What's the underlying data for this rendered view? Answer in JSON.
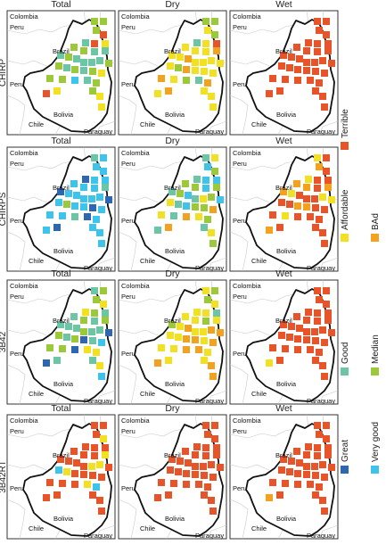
{
  "columns": [
    "Total",
    "Dry",
    "Wet"
  ],
  "rows": [
    "CHIRP",
    "CHIRPS",
    "3B42",
    "3B42RT"
  ],
  "country_labels": [
    "Colombia",
    "Peru",
    "Brazil",
    "Peru",
    "Bolivia",
    "Chile",
    "Paraguay"
  ],
  "legend": [
    {
      "label": "Terrible",
      "color": "#e8542a"
    },
    {
      "label": "Affordable",
      "color": "#f2e022"
    },
    {
      "label": "BAd",
      "color": "#f2a21f"
    },
    {
      "label": "Good",
      "color": "#6cc5a5"
    },
    {
      "label": "Median",
      "color": "#9cc93a"
    },
    {
      "label": "Great",
      "color": "#2f66b0"
    },
    {
      "label": "Very good",
      "color": "#3ec3ea"
    }
  ],
  "color_codes": {
    "T": "#e8542a",
    "A": "#f2e022",
    "B": "#f2a21f",
    "G": "#6cc5a5",
    "M": "#9cc93a",
    "R": "#2f66b0",
    "V": "#3ec3ea"
  },
  "panels": {
    "CHIRP": {
      "Total": "MMMTGTAMMGGGMGGGGMMGMGMAMMVGMMAAAT",
      "Dry": "MMAMGATAAABAABAAAAAMBAAABAMGBABAAA",
      "Wet": "TTTTTTTTTTTTTTTTTTTTTTTTTTTTTTTTTT"
    },
    "CHIRPS": {
      "Total": "GVVVRVVVVVGRVVVVVRVMVVRVVVGRVVRVVV",
      "Dry": "GAVMGVVMMVMGMVGAMVAGVMMBAGBAMGBAMG",
      "Wet": "ATBTATTBBTBBATTTAATTBBTTTATTTTTTTB"
    },
    "3B42": {
      "Total": "GMMAAMGGMGMGGGMGGRMGMRGVMMRAAGGAVR",
      "Dry": "AMMAAAGAAMAMABAABBAABBABAABBAAABBB",
      "Wet": "TTTTTTTTTTTTTTTTTTTTTTTTTTTTTTTTTA"
    },
    "3B42RT": {
      "Total": "TTTATTTTTTATTTTAATVATTTTTTTAVTTTTT",
      "Dry": "TTTTTTTTTTTTTTTTTTTTTTTTTTTTTTTTTT",
      "Wet": "TTTTTTTTTTTTTTTTTTTTTTTTTTTTTTTTTB"
    }
  }
}
